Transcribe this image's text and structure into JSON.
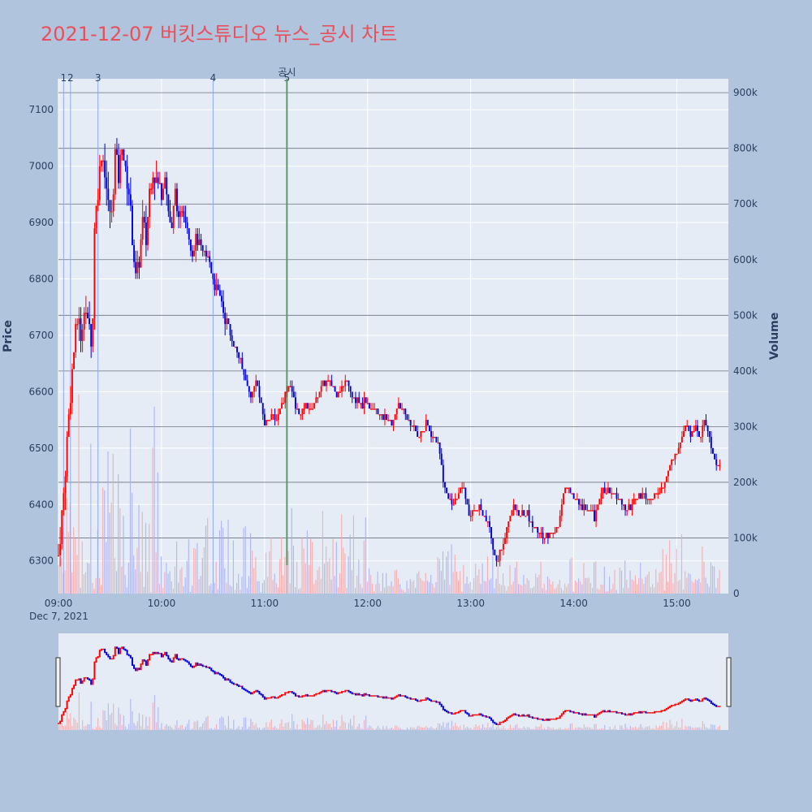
{
  "title": "2021-12-07 버킷스튜디오 뉴스_공시 차트",
  "colors": {
    "page_bg": "#b0c4de",
    "plot_bg": "#e5ecf6",
    "title": "#e8505b",
    "up": "#ff0000",
    "down": "#0000dd",
    "vol_up": "#f4a6a6",
    "vol_down": "#a6aef4",
    "news_line": "#8ea9f0",
    "disclosure_line": "#5a9a6a",
    "volume_grid": "#6b7280"
  },
  "chart_data": {
    "type": "candlestick",
    "xlabel": "",
    "x_sublabel": "Dec 7, 2021",
    "ylabel": "Price",
    "y2label": "Volume",
    "x_range": [
      "09:00",
      "15:30"
    ],
    "x_ticks": [
      "09:00",
      "10:00",
      "11:00",
      "12:00",
      "13:00",
      "14:00",
      "15:00"
    ],
    "ylim": [
      6242,
      7155
    ],
    "y_ticks": [
      6300,
      6400,
      6500,
      6600,
      6700,
      6800,
      6900,
      7000,
      7100
    ],
    "y2lim": [
      0,
      925000
    ],
    "y2_ticks": [
      0,
      100000,
      200000,
      300000,
      400000,
      500000,
      600000,
      700000,
      800000,
      900000
    ],
    "y2_tick_labels": [
      "0",
      "100k",
      "200k",
      "300k",
      "400k",
      "500k",
      "600k",
      "700k",
      "800k",
      "900k"
    ],
    "price_keypoints": [
      [
        "09:00",
        6310
      ],
      [
        "09:02",
        6380
      ],
      [
        "09:04",
        6460
      ],
      [
        "09:06",
        6560
      ],
      [
        "09:08",
        6640
      ],
      [
        "09:10",
        6700
      ],
      [
        "09:12",
        6740
      ],
      [
        "09:13",
        6680
      ],
      [
        "09:15",
        6760
      ],
      [
        "09:17",
        6720
      ],
      [
        "09:19",
        6700
      ],
      [
        "09:20",
        6730
      ],
      [
        "09:21",
        6900
      ],
      [
        "09:23",
        6960
      ],
      [
        "09:25",
        7030
      ],
      [
        "09:27",
        6990
      ],
      [
        "09:29",
        6930
      ],
      [
        "09:31",
        6910
      ],
      [
        "09:33",
        7020
      ],
      [
        "09:35",
        6980
      ],
      [
        "09:37",
        7040
      ],
      [
        "09:39",
        6990
      ],
      [
        "09:41",
        6960
      ],
      [
        "09:43",
        6870
      ],
      [
        "09:45",
        6800
      ],
      [
        "09:47",
        6830
      ],
      [
        "09:49",
        6900
      ],
      [
        "09:51",
        6870
      ],
      [
        "09:53",
        6960
      ],
      [
        "09:55",
        6990
      ],
      [
        "09:57",
        6980
      ],
      [
        "10:00",
        6950
      ],
      [
        "10:02",
        6990
      ],
      [
        "10:04",
        6920
      ],
      [
        "10:06",
        6880
      ],
      [
        "10:08",
        6960
      ],
      [
        "10:10",
        6900
      ],
      [
        "10:12",
        6930
      ],
      [
        "10:14",
        6910
      ],
      [
        "10:16",
        6880
      ],
      [
        "10:18",
        6850
      ],
      [
        "10:20",
        6870
      ],
      [
        "10:23",
        6850
      ],
      [
        "10:25",
        6840
      ],
      [
        "10:27",
        6840
      ],
      [
        "10:29",
        6820
      ],
      [
        "10:31",
        6790
      ],
      [
        "10:33",
        6770
      ],
      [
        "10:35",
        6760
      ],
      [
        "10:37",
        6730
      ],
      [
        "10:40",
        6700
      ],
      [
        "10:43",
        6680
      ],
      [
        "10:46",
        6650
      ],
      [
        "10:49",
        6620
      ],
      [
        "10:52",
        6590
      ],
      [
        "10:55",
        6620
      ],
      [
        "10:57",
        6590
      ],
      [
        "11:00",
        6540
      ],
      [
        "11:03",
        6560
      ],
      [
        "11:06",
        6550
      ],
      [
        "11:09",
        6570
      ],
      [
        "11:12",
        6600
      ],
      [
        "11:15",
        6610
      ],
      [
        "11:18",
        6570
      ],
      [
        "11:21",
        6560
      ],
      [
        "11:24",
        6580
      ],
      [
        "11:27",
        6570
      ],
      [
        "11:30",
        6590
      ],
      [
        "11:33",
        6610
      ],
      [
        "11:36",
        6620
      ],
      [
        "11:39",
        6610
      ],
      [
        "11:42",
        6600
      ],
      [
        "11:45",
        6610
      ],
      [
        "11:48",
        6620
      ],
      [
        "11:51",
        6590
      ],
      [
        "11:55",
        6580
      ],
      [
        "12:00",
        6580
      ],
      [
        "12:05",
        6570
      ],
      [
        "12:10",
        6550
      ],
      [
        "12:14",
        6540
      ],
      [
        "12:18",
        6580
      ],
      [
        "12:22",
        6560
      ],
      [
        "12:26",
        6540
      ],
      [
        "12:30",
        6520
      ],
      [
        "12:34",
        6540
      ],
      [
        "12:38",
        6520
      ],
      [
        "12:42",
        6500
      ],
      [
        "12:44",
        6440
      ],
      [
        "12:47",
        6410
      ],
      [
        "12:50",
        6400
      ],
      [
        "12:53",
        6420
      ],
      [
        "12:56",
        6430
      ],
      [
        "12:59",
        6380
      ],
      [
        "13:02",
        6390
      ],
      [
        "13:05",
        6400
      ],
      [
        "13:08",
        6380
      ],
      [
        "13:11",
        6360
      ],
      [
        "13:13",
        6320
      ],
      [
        "13:16",
        6300
      ],
      [
        "13:19",
        6330
      ],
      [
        "13:22",
        6370
      ],
      [
        "13:25",
        6400
      ],
      [
        "13:28",
        6380
      ],
      [
        "13:31",
        6390
      ],
      [
        "13:35",
        6370
      ],
      [
        "13:39",
        6350
      ],
      [
        "13:43",
        6340
      ],
      [
        "13:47",
        6350
      ],
      [
        "13:51",
        6360
      ],
      [
        "13:54",
        6420
      ],
      [
        "13:57",
        6430
      ],
      [
        "14:00",
        6410
      ],
      [
        "14:04",
        6400
      ],
      [
        "14:08",
        6390
      ],
      [
        "14:12",
        6380
      ],
      [
        "14:16",
        6420
      ],
      [
        "14:20",
        6430
      ],
      [
        "14:24",
        6410
      ],
      [
        "14:28",
        6400
      ],
      [
        "14:32",
        6390
      ],
      [
        "14:36",
        6410
      ],
      [
        "14:40",
        6420
      ],
      [
        "14:44",
        6410
      ],
      [
        "14:48",
        6420
      ],
      [
        "14:52",
        6430
      ],
      [
        "14:56",
        6470
      ],
      [
        "15:00",
        6490
      ],
      [
        "15:02",
        6510
      ],
      [
        "15:05",
        6550
      ],
      [
        "15:08",
        6520
      ],
      [
        "15:11",
        6540
      ],
      [
        "15:14",
        6520
      ],
      [
        "15:16",
        6550
      ],
      [
        "15:18",
        6530
      ],
      [
        "15:20",
        6500
      ],
      [
        "15:23",
        6480
      ],
      [
        "15:25",
        6470
      ]
    ],
    "annotations": [
      {
        "time": "09:03",
        "label": "1"
      },
      {
        "time": "09:07",
        "label": "2"
      },
      {
        "time": "09:23",
        "label": "3"
      },
      {
        "time": "10:30",
        "label": "4"
      },
      {
        "time": "11:13",
        "label": "5"
      }
    ],
    "disclosure": {
      "time": "11:13",
      "label": "공시"
    },
    "volume_reference_levels": [
      100000,
      200000,
      300000,
      400000,
      500000,
      600000,
      700000,
      800000,
      900000
    ],
    "legend": "none",
    "grid": true,
    "rangeslider": true
  }
}
